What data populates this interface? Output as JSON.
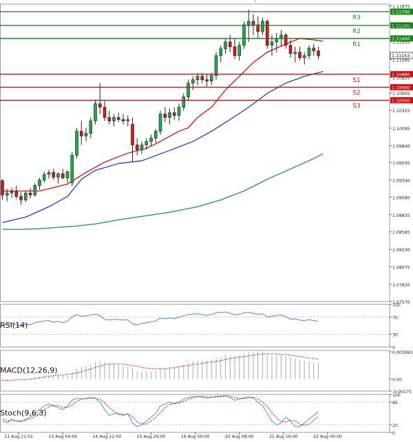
{
  "chart_data": {
    "type": "candlestick",
    "instrument": "EUR/USD",
    "timeframe": "H4",
    "price_axis": {
      "ylim": [
        1.0757,
        1.119
      ],
      "ticks": [
        "1.11875",
        "1.11615",
        "1.11355",
        "1.11095",
        "1.10835",
        "1.10605",
        "1.10355",
        "1.10095",
        "1.09840",
        "1.09595",
        "1.09340",
        "1.09090",
        "1.08835",
        "1.08585",
        "1.08330",
        "1.08075",
        "1.07820",
        "1.07570"
      ],
      "last_price": "1.11153"
    },
    "levels": [
      {
        "name": "R3",
        "value": 1.1179,
        "label": "1.11790",
        "color": "#1a8a1a"
      },
      {
        "name": "R2",
        "value": 1.1159,
        "label": "1.11590",
        "color": "#1a8a1a"
      },
      {
        "name": "R1",
        "value": 1.114,
        "label": "1.11400",
        "color": "#1a8a1a"
      },
      {
        "name": "S1",
        "value": 1.1088,
        "label": "1.10880",
        "color": "#d01010"
      },
      {
        "name": "S2",
        "value": 1.1069,
        "label": "1.10690",
        "color": "#d01010"
      },
      {
        "name": "S3",
        "value": 1.105,
        "label": "1.10500",
        "color": "#d01010"
      }
    ],
    "x_labels": [
      {
        "text": "00",
        "bar": -1.5
      },
      {
        "text": "11 Aug 21:01",
        "bar": 3.5
      },
      {
        "text": "13 Aug 04:00",
        "bar": 13
      },
      {
        "text": "14 Aug 12:00",
        "bar": 22.5
      },
      {
        "text": "15 Aug 20:00",
        "bar": 32
      },
      {
        "text": "19 Aug 00:00",
        "bar": 41.5
      },
      {
        "text": "20 Aug 08:00",
        "bar": 51
      },
      {
        "text": "21 Aug 16:00",
        "bar": 60.5
      },
      {
        "text": "23 Aug 00:00",
        "bar": 70
      }
    ],
    "candles": [
      [
        1.0933,
        1.0935,
        1.0905,
        1.0912
      ],
      [
        1.0912,
        1.0921,
        1.0903,
        1.0915
      ],
      [
        1.0915,
        1.0923,
        1.0908,
        1.0917
      ],
      [
        1.0917,
        1.0926,
        1.0906,
        1.091
      ],
      [
        1.091,
        1.0916,
        1.0898,
        1.0905
      ],
      [
        1.0905,
        1.0918,
        1.0902,
        1.0915
      ],
      [
        1.0915,
        1.0922,
        1.0907,
        1.0912
      ],
      [
        1.0912,
        1.0929,
        1.091,
        1.0926
      ],
      [
        1.0926,
        1.0937,
        1.092,
        1.0934
      ],
      [
        1.0934,
        1.0946,
        1.093,
        1.0942
      ],
      [
        1.0942,
        1.0949,
        1.0936,
        1.0945
      ],
      [
        1.0945,
        1.095,
        1.0934,
        1.0938
      ],
      [
        1.0938,
        1.0945,
        1.0929,
        1.0943
      ],
      [
        1.0943,
        1.095,
        1.0935,
        1.0937
      ],
      [
        1.0937,
        1.0948,
        1.093,
        1.0946
      ],
      [
        1.093,
        1.0975,
        1.0925,
        1.097
      ],
      [
        1.097,
        1.101,
        1.0965,
        1.1005
      ],
      [
        1.1005,
        1.102,
        1.0985,
        1.0998
      ],
      [
        1.0998,
        1.101,
        1.099,
        1.1002
      ],
      [
        1.1002,
        1.1025,
        1.0995,
        1.102
      ],
      [
        1.102,
        1.105,
        1.1015,
        1.1045
      ],
      [
        1.1045,
        1.1075,
        1.103,
        1.104
      ],
      [
        1.104,
        1.105,
        1.102,
        1.1025
      ],
      [
        1.1025,
        1.1035,
        1.1015,
        1.102
      ],
      [
        1.102,
        1.103,
        1.1012,
        1.1025
      ],
      [
        1.1025,
        1.1032,
        1.1018,
        1.1022
      ],
      [
        1.1022,
        1.103,
        1.1015,
        1.102
      ],
      [
        1.102,
        1.1028,
        1.1012,
        1.1022
      ],
      [
        1.1015,
        1.1025,
        1.096,
        1.0985
      ],
      [
        1.0985,
        1.0995,
        1.097,
        1.0978
      ],
      [
        1.0978,
        1.099,
        1.0972,
        1.0985
      ],
      [
        1.0985,
        1.0995,
        1.0978,
        1.099
      ],
      [
        1.099,
        1.1,
        1.0983,
        1.0995
      ],
      [
        1.0995,
        1.1008,
        1.0988,
        1.1005
      ],
      [
        1.1005,
        1.1035,
        1.1,
        1.103
      ],
      [
        1.103,
        1.104,
        1.1018,
        1.1025
      ],
      [
        1.1025,
        1.1038,
        1.1015,
        1.1032
      ],
      [
        1.1032,
        1.104,
        1.1022,
        1.1028
      ],
      [
        1.1028,
        1.1045,
        1.102,
        1.104
      ],
      [
        1.104,
        1.106,
        1.1035,
        1.1055
      ],
      [
        1.1055,
        1.108,
        1.105,
        1.1075
      ],
      [
        1.1075,
        1.1085,
        1.1065,
        1.108
      ],
      [
        1.108,
        1.109,
        1.1072,
        1.1085
      ],
      [
        1.1085,
        1.109,
        1.1075,
        1.108
      ],
      [
        1.108,
        1.1088,
        1.107,
        1.1078
      ],
      [
        1.1078,
        1.109,
        1.1072,
        1.1086
      ],
      [
        1.1086,
        1.112,
        1.108,
        1.1115
      ],
      [
        1.1115,
        1.113,
        1.1105,
        1.1125
      ],
      [
        1.1125,
        1.114,
        1.1118,
        1.1135
      ],
      [
        1.1135,
        1.1145,
        1.112,
        1.1128
      ],
      [
        1.1128,
        1.114,
        1.111,
        1.1115
      ],
      [
        1.1115,
        1.1135,
        1.1108,
        1.113
      ],
      [
        1.113,
        1.1165,
        1.1125,
        1.116
      ],
      [
        1.116,
        1.1182,
        1.1135,
        1.1165
      ],
      [
        1.1165,
        1.1175,
        1.1145,
        1.116
      ],
      [
        1.116,
        1.1172,
        1.114,
        1.115
      ],
      [
        1.115,
        1.117,
        1.1145,
        1.1165
      ],
      [
        1.1165,
        1.1168,
        1.1125,
        1.113
      ],
      [
        1.113,
        1.1145,
        1.1115,
        1.1135
      ],
      [
        1.1135,
        1.1148,
        1.112,
        1.114
      ],
      [
        1.114,
        1.1152,
        1.1128,
        1.1145
      ],
      [
        1.1145,
        1.1148,
        1.1125,
        1.113
      ],
      [
        1.113,
        1.1138,
        1.1112,
        1.1118
      ],
      [
        1.1118,
        1.1128,
        1.1105,
        1.112
      ],
      [
        1.112,
        1.1128,
        1.1108,
        1.1112
      ],
      [
        1.1112,
        1.112,
        1.1102,
        1.1115
      ],
      [
        1.1115,
        1.113,
        1.111,
        1.1126
      ],
      [
        1.1126,
        1.1132,
        1.1115,
        1.1122
      ],
      [
        1.1122,
        1.1128,
        1.111,
        1.1115
      ]
    ],
    "moving_averages": [
      {
        "name": "MA fast",
        "color": "#e01818",
        "points": [
          [
            0,
            1.0918
          ],
          [
            8,
            1.0918
          ],
          [
            14,
            1.0928
          ],
          [
            18,
            1.0945
          ],
          [
            22,
            1.096
          ],
          [
            27,
            1.0973
          ],
          [
            31,
            1.098
          ],
          [
            34,
            1.099
          ],
          [
            38,
            1.1005
          ],
          [
            40,
            1.101
          ],
          [
            42,
            1.1025
          ],
          [
            45,
            1.104
          ],
          [
            48,
            1.1065
          ],
          [
            51,
            1.1085
          ],
          [
            54,
            1.1105
          ],
          [
            57,
            1.112
          ],
          [
            61,
            1.1132
          ],
          [
            64,
            1.114
          ],
          [
            67,
            1.1138
          ],
          [
            69,
            1.1136
          ]
        ]
      },
      {
        "name": "MA medium",
        "color": "#2050c8",
        "points": [
          [
            0,
            1.0872
          ],
          [
            5,
            1.088
          ],
          [
            10,
            1.0895
          ],
          [
            14,
            1.091
          ],
          [
            17,
            1.0935
          ],
          [
            20,
            1.0948
          ],
          [
            25,
            1.0958
          ],
          [
            30,
            1.0962
          ],
          [
            36,
            1.0977
          ],
          [
            41,
            1.099
          ],
          [
            45,
            1.1005
          ],
          [
            49,
            1.1022
          ],
          [
            53,
            1.104
          ],
          [
            57,
            1.106
          ],
          [
            61,
            1.1075
          ],
          [
            65,
            1.1085
          ],
          [
            69,
            1.1092
          ]
        ]
      },
      {
        "name": "MA slow",
        "color": "#20a050",
        "points": [
          [
            0,
            1.0862
          ],
          [
            4,
            1.0862
          ],
          [
            8,
            1.0863
          ],
          [
            12,
            1.0865
          ],
          [
            16,
            1.0867
          ],
          [
            20,
            1.087
          ],
          [
            25,
            1.0876
          ],
          [
            30,
            1.0881
          ],
          [
            36,
            1.0887
          ],
          [
            42,
            1.0895
          ],
          [
            47,
            1.0905
          ],
          [
            52,
            1.0918
          ],
          [
            57,
            1.0935
          ],
          [
            62,
            1.095
          ],
          [
            66,
            1.0962
          ],
          [
            69,
            1.0972
          ]
        ]
      }
    ],
    "indicators": [
      {
        "name": "RSI",
        "label": "RSI(14)",
        "ylim": [
          0,
          100
        ],
        "ticks": [
          "100",
          "70",
          "30",
          "0"
        ],
        "series": [
          {
            "name": "RSI",
            "color": "#3a8fd8",
            "values": [
              50,
              53,
              55,
              52,
              50,
              54,
              52,
              57,
              59,
              61,
              62,
              58,
              60,
              57,
              61,
              71,
              76,
              72,
              73,
              75,
              77,
              73,
              65,
              63,
              65,
              64,
              63,
              64,
              54,
              52,
              55,
              57,
              59,
              61,
              68,
              66,
              68,
              66,
              70,
              73,
              76,
              77,
              78,
              76,
              74,
              76,
              80,
              81,
              82,
              79,
              75,
              77,
              80,
              81,
              79,
              76,
              78,
              70,
              72,
              74,
              75,
              71,
              65,
              66,
              63,
              62,
              64,
              62,
              60
            ]
          }
        ]
      },
      {
        "name": "MACD",
        "label": "MACD(12,26,9)",
        "ylim": [
          -0.00175,
          0.0042
        ],
        "ticks": [
          "0.003993",
          "0.00",
          "-0.00175"
        ],
        "histogram": {
          "color": "#a9a9a9",
          "values": [
            -0.0002,
            -0.0002,
            -0.0001,
            -0.0001,
            -0.0001,
            0.0,
            0.0,
            0.0002,
            0.0003,
            0.0005,
            0.0006,
            0.0006,
            0.0007,
            0.0006,
            0.0007,
            0.001,
            0.0015,
            0.0018,
            0.002,
            0.0022,
            0.0025,
            0.0026,
            0.0025,
            0.0023,
            0.0022,
            0.0021,
            0.002,
            0.0019,
            0.0015,
            0.0012,
            0.0011,
            0.0011,
            0.0011,
            0.0012,
            0.0015,
            0.0016,
            0.0017,
            0.0018,
            0.0019,
            0.0021,
            0.0024,
            0.0026,
            0.0027,
            0.0027,
            0.0027,
            0.0028,
            0.0031,
            0.0033,
            0.0035,
            0.0035,
            0.0034,
            0.0035,
            0.0037,
            0.0039,
            0.004,
            0.004,
            0.004,
            0.0036,
            0.0035,
            0.0035,
            0.0035,
            0.0034,
            0.0032,
            0.003,
            0.0028,
            0.0027,
            0.0026,
            0.0024,
            0.0023
          ]
        },
        "signal": {
          "color": "#e01818",
          "values": [
            -0.0002,
            -0.0002,
            -0.0002,
            -0.0001,
            -0.0001,
            -0.0001,
            0.0,
            0.0001,
            0.0002,
            0.0003,
            0.0004,
            0.0005,
            0.0006,
            0.0006,
            0.0007,
            0.0008,
            0.0009,
            0.0011,
            0.0013,
            0.0015,
            0.0017,
            0.0019,
            0.0021,
            0.0022,
            0.0022,
            0.0022,
            0.0022,
            0.0021,
            0.002,
            0.0019,
            0.0017,
            0.0016,
            0.0015,
            0.0015,
            0.0015,
            0.0015,
            0.0016,
            0.0017,
            0.0018,
            0.0019,
            0.002,
            0.0021,
            0.0022,
            0.0023,
            0.0024,
            0.0025,
            0.0026,
            0.0027,
            0.0029,
            0.003,
            0.0031,
            0.0032,
            0.0033,
            0.0034,
            0.0035,
            0.0036,
            0.0037,
            0.0037,
            0.0037,
            0.0037,
            0.0036,
            0.0036,
            0.0035,
            0.0034,
            0.0033,
            0.0032,
            0.0031,
            0.003,
            0.0029
          ]
        }
      },
      {
        "name": "Stochastic",
        "label": "Stoch(9,6,3)",
        "ylim": [
          0,
          100
        ],
        "ticks": [
          "100",
          "80",
          "20",
          "0"
        ],
        "series": [
          {
            "name": "%K",
            "color": "#22b4b4",
            "values": [
              30,
              25,
              35,
              30,
              28,
              35,
              40,
              50,
              60,
              70,
              75,
              70,
              65,
              60,
              70,
              85,
              90,
              88,
              90,
              92,
              90,
              80,
              60,
              45,
              50,
              48,
              45,
              50,
              25,
              15,
              20,
              30,
              40,
              50,
              70,
              75,
              80,
              75,
              80,
              88,
              92,
              94,
              95,
              93,
              90,
              92,
              95,
              96,
              97,
              92,
              85,
              88,
              92,
              94,
              90,
              80,
              70,
              50,
              30,
              20,
              25,
              40,
              30,
              15,
              15,
              25,
              35,
              45,
              55
            ]
          },
          {
            "name": "%D",
            "color": "#e01818",
            "values": [
              35,
              30,
              32,
              30,
              30,
              32,
              36,
              42,
              50,
              60,
              68,
              72,
              70,
              66,
              66,
              72,
              82,
              88,
              89,
              90,
              91,
              87,
              78,
              65,
              55,
              50,
              47,
              48,
              40,
              28,
              22,
              22,
              30,
              40,
              52,
              65,
              74,
              77,
              78,
              82,
              87,
              91,
              94,
              95,
              94,
              93,
              93,
              94,
              96,
              95,
              92,
              89,
              89,
              91,
              92,
              88,
              80,
              68,
              52,
              38,
              28,
              28,
              32,
              30,
              22,
              18,
              22,
              32,
              42
            ]
          }
        ]
      }
    ]
  }
}
